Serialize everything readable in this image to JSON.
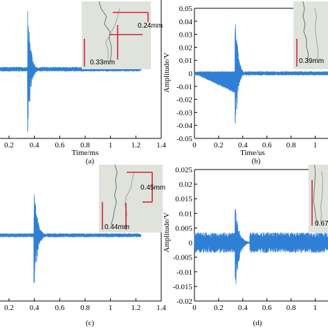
{
  "chart_data": [
    {
      "panel": "a",
      "type": "line",
      "caption": "(a)",
      "xlabel": "Time/ms",
      "ylabel": "",
      "xlim": [
        0.08,
        1.4
      ],
      "ylim": [
        -0.05,
        0.05
      ],
      "xticks": [
        "0.2",
        "0.4",
        "0.6",
        "0.8",
        "1",
        "1.2",
        "1.4"
      ],
      "yticks": [],
      "series": [
        {
          "color": "#2f7fd6",
          "x_range": [
            0.0,
            1.24
          ],
          "baseline": 0.0,
          "noise_amplitude": 0.0017,
          "burst_center": 0.35,
          "burst_peak_positive": 0.044,
          "burst_peak_negative": -0.046,
          "burst_decay": 0.022
        }
      ],
      "inset": {
        "description": "crack micrograph",
        "labels": [
          "0.24mm",
          "0.33mm"
        ]
      }
    },
    {
      "panel": "b",
      "type": "line",
      "caption": "(b)",
      "xlabel": "Time/us",
      "ylabel": "Amplitude/V",
      "xlim": [
        0,
        1.14
      ],
      "ylim": [
        -0.05,
        0.05
      ],
      "xticks": [
        "0",
        "0.2",
        "0.4",
        "0.6",
        "0.8",
        "1"
      ],
      "yticks": [
        "0.05",
        "0.04",
        "0.03",
        "0.02",
        "0.01",
        "0",
        "-0.01",
        "-0.02",
        "-0.03",
        "-0.04",
        "-0.05"
      ],
      "series": [
        {
          "color": "#2f7fd6",
          "x_range": [
            0.0,
            1.14
          ],
          "baseline": 0.0,
          "noise_amplitude": 0.0016,
          "ramp_from": 0.0,
          "ramp_to": 0.35,
          "ramp_min": -0.016,
          "burst_center": 0.34,
          "burst_peak_positive": 0.049,
          "burst_peak_negative": -0.047,
          "burst_decay": 0.02
        }
      ],
      "inset": {
        "description": "crack micrograph",
        "labels": [
          "0.39mm"
        ]
      }
    },
    {
      "panel": "c",
      "type": "line",
      "caption": "(c)",
      "xlabel": "",
      "ylabel": "",
      "xlim": [
        0.08,
        1.4
      ],
      "ylim": [
        -0.05,
        0.05
      ],
      "xticks": [
        "0.2",
        "0.4",
        "0.6",
        "0.8",
        "1",
        "1.2",
        "1.4"
      ],
      "yticks": [],
      "series": [
        {
          "color": "#2f7fd6",
          "x_range": [
            0.0,
            1.24
          ],
          "baseline": 0.0,
          "noise_amplitude": 0.0015,
          "burst_center": 0.4,
          "burst_peak_positive": 0.036,
          "burst_peak_negative": -0.043,
          "burst_decay": 0.025
        }
      ],
      "inset": {
        "description": "crack micrograph",
        "labels": [
          "0.45mm",
          "0.44mm"
        ]
      }
    },
    {
      "panel": "d",
      "type": "line",
      "caption": "(d)",
      "xlabel": "",
      "ylabel": "Amplitude/V",
      "xlim": [
        0,
        1.14
      ],
      "ylim": [
        -0.02,
        0.025
      ],
      "xticks": [
        "0",
        "0.2",
        "0.4",
        "0.6",
        "0.8",
        "1"
      ],
      "yticks": [
        "0.025",
        "0.02",
        "0.015",
        "0.01",
        "0.005",
        "0",
        "-0.005",
        "-0.01",
        "-0.015",
        "-0.02"
      ],
      "series": [
        {
          "color": "#2f7fd6",
          "x_range": [
            0.0,
            1.14
          ],
          "baseline": 0.0,
          "noise_amplitude": 0.0035,
          "burst_center": 0.34,
          "burst_peak_positive": 0.012,
          "burst_peak_negative": -0.017,
          "burst_decay": 0.03
        }
      ],
      "inset": {
        "description": "crack micrograph",
        "labels": [
          "0.67"
        ]
      }
    }
  ]
}
